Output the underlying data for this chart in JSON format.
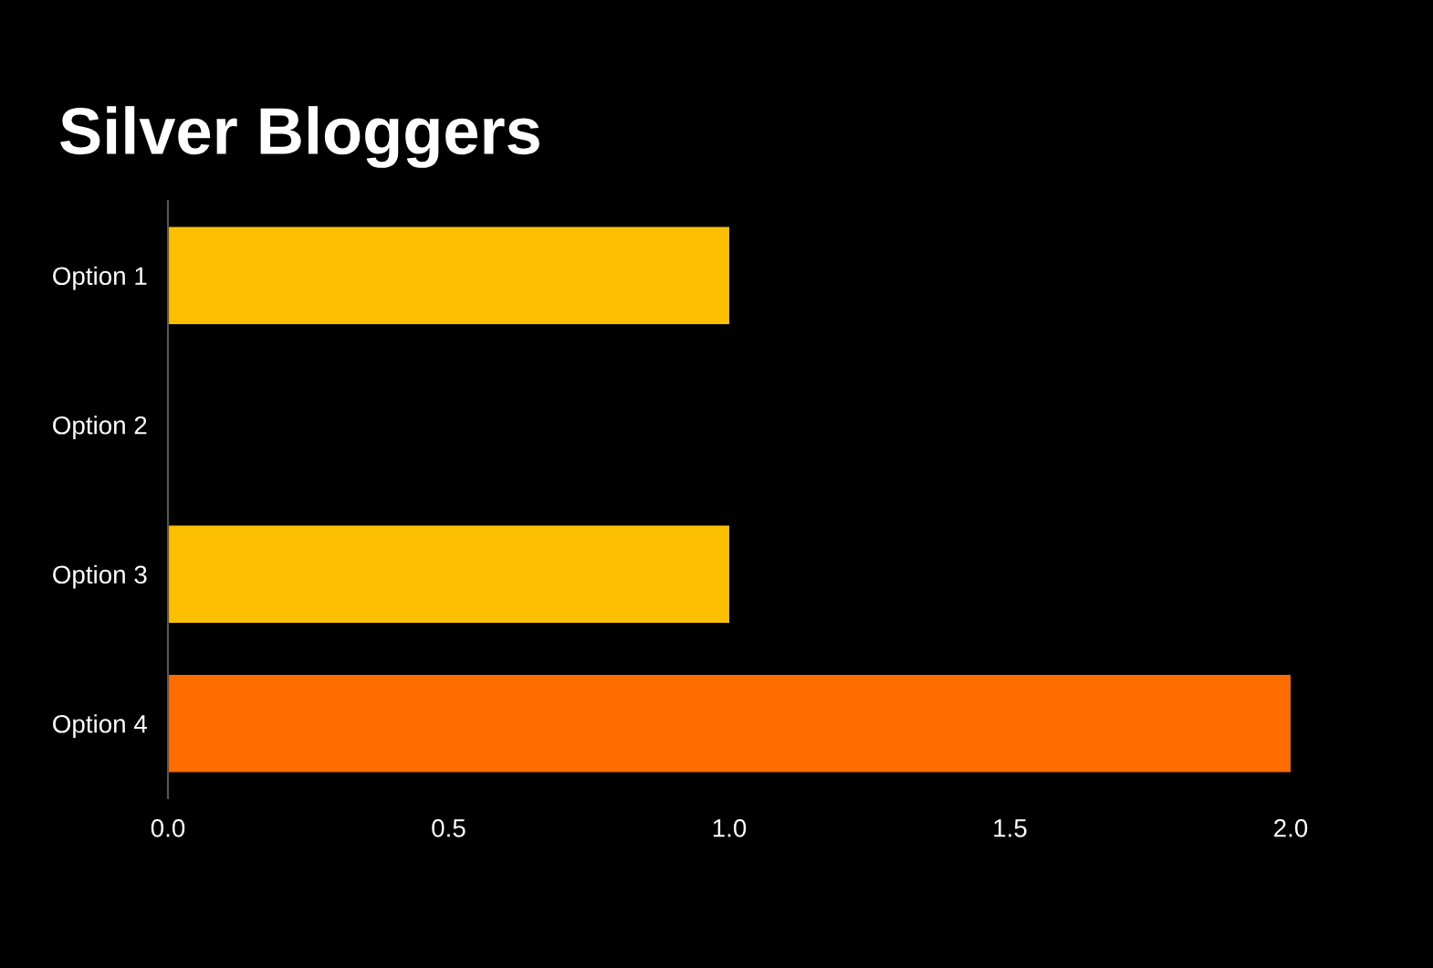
{
  "chart_data": {
    "type": "bar",
    "orientation": "horizontal",
    "title": "Silver Bloggers",
    "categories": [
      "Option 1",
      "Option 2",
      "Option 3",
      "Option 4"
    ],
    "values": [
      1,
      0,
      1,
      2
    ],
    "colors": [
      "#fbbe00",
      "#fbbe00",
      "#fbbe00",
      "#ff6d00"
    ],
    "xlim": [
      0,
      2
    ],
    "xticks": [
      {
        "value": 0,
        "label": "0.0"
      },
      0.5,
      {
        "value": 1,
        "label": "1.0"
      },
      1.5,
      {
        "value": 2,
        "label": "2.0"
      }
    ],
    "grid": false,
    "legend": false
  }
}
